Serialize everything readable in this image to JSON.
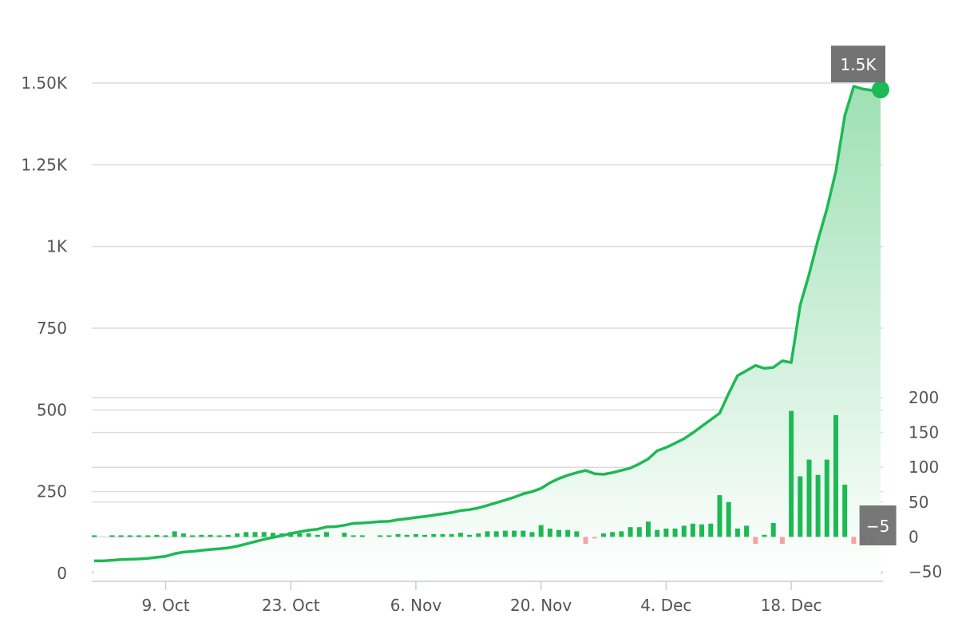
{
  "chart_data": {
    "type": "line",
    "grid": true,
    "legend": "none",
    "colors": {
      "line": "#1db954",
      "area_top": "#9ee0b4",
      "bar_positive": "#1db954",
      "bar_negative": "#f4a3a3",
      "tooltip_bg": "#6b6b6b",
      "marker": "#1db954"
    },
    "x_axis": {
      "type": "date",
      "range": [
        "2023-10-01",
        "2023-12-28"
      ],
      "ticks": [
        {
          "date": "2023-10-09",
          "label": "9. Oct"
        },
        {
          "date": "2023-10-23",
          "label": "23. Oct"
        },
        {
          "date": "2023-11-06",
          "label": "6. Nov"
        },
        {
          "date": "2023-11-20",
          "label": "20. Nov"
        },
        {
          "date": "2023-12-04",
          "label": "4. Dec"
        },
        {
          "date": "2023-12-18",
          "label": "18. Dec"
        }
      ]
    },
    "y_axis_left": {
      "range": [
        0,
        1500
      ],
      "ticks": [
        {
          "value": 0,
          "label": "0"
        },
        {
          "value": 250,
          "label": "250"
        },
        {
          "value": 500,
          "label": "500"
        },
        {
          "value": 750,
          "label": "750"
        },
        {
          "value": 1000,
          "label": "1K"
        },
        {
          "value": 1250,
          "label": "1.25K"
        },
        {
          "value": 1500,
          "label": "1.50K"
        }
      ]
    },
    "y_axis_right": {
      "range": [
        -50,
        200
      ],
      "ticks": [
        {
          "value": -50,
          "label": "−50"
        },
        {
          "value": 0,
          "label": "0"
        },
        {
          "value": 50,
          "label": "50"
        },
        {
          "value": 100,
          "label": "100"
        },
        {
          "value": 150,
          "label": "150"
        },
        {
          "value": 200,
          "label": "200"
        }
      ]
    },
    "series": [
      {
        "type": "area",
        "axis": "left",
        "points": [
          [
            "2023-10-01",
            38
          ],
          [
            "2023-10-02",
            38
          ],
          [
            "2023-10-03",
            40
          ],
          [
            "2023-10-04",
            42
          ],
          [
            "2023-10-05",
            43
          ],
          [
            "2023-10-06",
            44
          ],
          [
            "2023-10-07",
            46
          ],
          [
            "2023-10-08",
            49
          ],
          [
            "2023-10-09",
            52
          ],
          [
            "2023-10-10",
            60
          ],
          [
            "2023-10-11",
            65
          ],
          [
            "2023-10-12",
            67
          ],
          [
            "2023-10-13",
            70
          ],
          [
            "2023-10-14",
            73
          ],
          [
            "2023-10-15",
            75
          ],
          [
            "2023-10-16",
            78
          ],
          [
            "2023-10-17",
            83
          ],
          [
            "2023-10-18",
            90
          ],
          [
            "2023-10-19",
            97
          ],
          [
            "2023-10-20",
            104
          ],
          [
            "2023-10-21",
            110
          ],
          [
            "2023-10-22",
            115
          ],
          [
            "2023-10-23",
            122
          ],
          [
            "2023-10-24",
            127
          ],
          [
            "2023-10-25",
            132
          ],
          [
            "2023-10-26",
            135
          ],
          [
            "2023-10-27",
            142
          ],
          [
            "2023-10-28",
            143
          ],
          [
            "2023-10-29",
            147
          ],
          [
            "2023-10-30",
            153
          ],
          [
            "2023-10-31",
            154
          ],
          [
            "2023-11-01",
            156
          ],
          [
            "2023-11-02",
            158
          ],
          [
            "2023-11-03",
            159
          ],
          [
            "2023-11-04",
            164
          ],
          [
            "2023-11-05",
            167
          ],
          [
            "2023-11-06",
            171
          ],
          [
            "2023-11-07",
            174
          ],
          [
            "2023-11-08",
            178
          ],
          [
            "2023-11-09",
            182
          ],
          [
            "2023-11-10",
            186
          ],
          [
            "2023-11-11",
            192
          ],
          [
            "2023-11-12",
            195
          ],
          [
            "2023-11-13",
            200
          ],
          [
            "2023-11-14",
            208
          ],
          [
            "2023-11-15",
            216
          ],
          [
            "2023-11-16",
            224
          ],
          [
            "2023-11-17",
            233
          ],
          [
            "2023-11-18",
            243
          ],
          [
            "2023-11-19",
            250
          ],
          [
            "2023-11-20",
            260
          ],
          [
            "2023-11-21",
            277
          ],
          [
            "2023-11-22",
            290
          ],
          [
            "2023-11-23",
            300
          ],
          [
            "2023-11-24",
            308
          ],
          [
            "2023-11-25",
            315
          ],
          [
            "2023-11-26",
            305
          ],
          [
            "2023-11-27",
            303
          ],
          [
            "2023-11-28",
            308
          ],
          [
            "2023-11-29",
            315
          ],
          [
            "2023-11-30",
            322
          ],
          [
            "2023-12-01",
            335
          ],
          [
            "2023-12-02",
            350
          ],
          [
            "2023-12-03",
            375
          ],
          [
            "2023-12-04",
            385
          ],
          [
            "2023-12-05",
            398
          ],
          [
            "2023-12-06",
            412
          ],
          [
            "2023-12-07",
            430
          ],
          [
            "2023-12-08",
            450
          ],
          [
            "2023-12-09",
            470
          ],
          [
            "2023-12-10",
            490
          ],
          [
            "2023-12-11",
            550
          ],
          [
            "2023-12-12",
            605
          ],
          [
            "2023-12-13",
            620
          ],
          [
            "2023-12-14",
            636
          ],
          [
            "2023-12-15",
            627
          ],
          [
            "2023-12-16",
            630
          ],
          [
            "2023-12-17",
            650
          ],
          [
            "2023-12-18",
            645
          ],
          [
            "2023-12-19",
            820
          ],
          [
            "2023-12-20",
            915
          ],
          [
            "2023-12-21",
            1020
          ],
          [
            "2023-12-22",
            1115
          ],
          [
            "2023-12-23",
            1230
          ],
          [
            "2023-12-24",
            1400
          ],
          [
            "2023-12-25",
            1490
          ],
          [
            "2023-12-26",
            1482
          ],
          [
            "2023-12-27",
            1478
          ],
          [
            "2023-12-28",
            1480
          ]
        ]
      },
      {
        "type": "column",
        "axis": "right",
        "points": [
          [
            "2023-10-01",
            1
          ],
          [
            "2023-10-03",
            2
          ],
          [
            "2023-10-04",
            1
          ],
          [
            "2023-10-05",
            1
          ],
          [
            "2023-10-06",
            1
          ],
          [
            "2023-10-07",
            1
          ],
          [
            "2023-10-08",
            3
          ],
          [
            "2023-10-09",
            2
          ],
          [
            "2023-10-10",
            8
          ],
          [
            "2023-10-11",
            5
          ],
          [
            "2023-10-12",
            2
          ],
          [
            "2023-10-13",
            3
          ],
          [
            "2023-10-14",
            3
          ],
          [
            "2023-10-15",
            2
          ],
          [
            "2023-10-16",
            3
          ],
          [
            "2023-10-17",
            5
          ],
          [
            "2023-10-18",
            7
          ],
          [
            "2023-10-19",
            7
          ],
          [
            "2023-10-20",
            7
          ],
          [
            "2023-10-21",
            6
          ],
          [
            "2023-10-22",
            5
          ],
          [
            "2023-10-23",
            7
          ],
          [
            "2023-10-24",
            5
          ],
          [
            "2023-10-25",
            5
          ],
          [
            "2023-10-26",
            3
          ],
          [
            "2023-10-27",
            7
          ],
          [
            "2023-10-29",
            6
          ],
          [
            "2023-10-30",
            1
          ],
          [
            "2023-10-31",
            2
          ],
          [
            "2023-11-02",
            2
          ],
          [
            "2023-11-03",
            1
          ],
          [
            "2023-11-04",
            4
          ],
          [
            "2023-11-05",
            3
          ],
          [
            "2023-11-06",
            4
          ],
          [
            "2023-11-07",
            3
          ],
          [
            "2023-11-08",
            4
          ],
          [
            "2023-11-09",
            4
          ],
          [
            "2023-11-10",
            4
          ],
          [
            "2023-11-11",
            6
          ],
          [
            "2023-11-12",
            3
          ],
          [
            "2023-11-13",
            5
          ],
          [
            "2023-11-14",
            8
          ],
          [
            "2023-11-15",
            8
          ],
          [
            "2023-11-16",
            9
          ],
          [
            "2023-11-17",
            9
          ],
          [
            "2023-11-18",
            9
          ],
          [
            "2023-11-19",
            7
          ],
          [
            "2023-11-20",
            17
          ],
          [
            "2023-11-21",
            12
          ],
          [
            "2023-11-22",
            10
          ],
          [
            "2023-11-23",
            10
          ],
          [
            "2023-11-24",
            8
          ],
          [
            "2023-11-25",
            -10
          ],
          [
            "2023-11-26",
            -2
          ],
          [
            "2023-11-27",
            5
          ],
          [
            "2023-11-28",
            7
          ],
          [
            "2023-11-29",
            8
          ],
          [
            "2023-11-30",
            14
          ],
          [
            "2023-12-01",
            14
          ],
          [
            "2023-12-02",
            22
          ],
          [
            "2023-12-03",
            10
          ],
          [
            "2023-12-04",
            12
          ],
          [
            "2023-12-05",
            12
          ],
          [
            "2023-12-06",
            16
          ],
          [
            "2023-12-07",
            19
          ],
          [
            "2023-12-08",
            18
          ],
          [
            "2023-12-09",
            19
          ],
          [
            "2023-12-10",
            60
          ],
          [
            "2023-12-11",
            50
          ],
          [
            "2023-12-12",
            12
          ],
          [
            "2023-12-13",
            16
          ],
          [
            "2023-12-14",
            -10
          ],
          [
            "2023-12-15",
            3
          ],
          [
            "2023-12-16",
            20
          ],
          [
            "2023-12-17",
            -10
          ],
          [
            "2023-12-18",
            181
          ],
          [
            "2023-12-19",
            87
          ],
          [
            "2023-12-20",
            111
          ],
          [
            "2023-12-21",
            89
          ],
          [
            "2023-12-22",
            111
          ],
          [
            "2023-12-23",
            175
          ],
          [
            "2023-12-24",
            75
          ],
          [
            "2023-12-25",
            -10
          ],
          [
            "2023-12-26",
            -5
          ],
          [
            "2023-12-27",
            -5
          ]
        ]
      }
    ],
    "tooltips": [
      {
        "text": "1.5K",
        "series": 0,
        "point": 88
      },
      {
        "text": "−5",
        "series": 1,
        "point": 83
      }
    ]
  }
}
